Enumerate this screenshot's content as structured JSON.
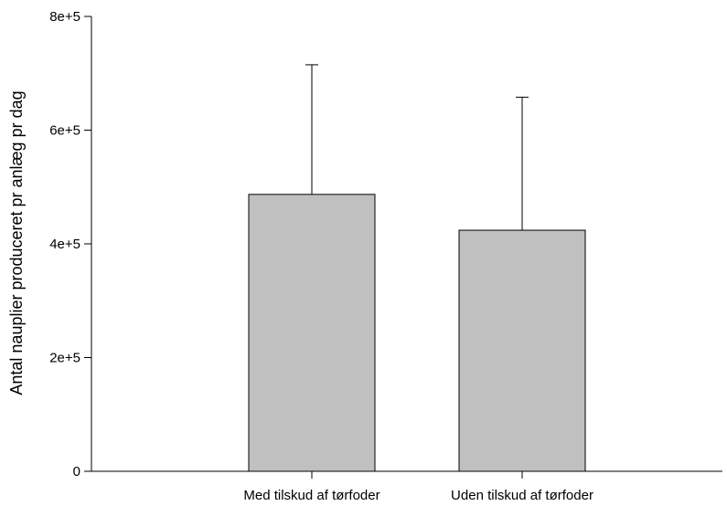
{
  "chart_data": {
    "type": "bar",
    "title": "",
    "xlabel": "",
    "ylabel": "Antal nauplier produceret pr anlæg pr dag",
    "categories": [
      "Med tilskud af tørfoder",
      "Uden tilskud af tørfoder"
    ],
    "values": [
      487000,
      424000
    ],
    "error_upper": [
      715000,
      658000
    ],
    "ylim": [
      0,
      800000
    ],
    "yticks": [
      0,
      200000,
      400000,
      600000,
      800000
    ],
    "ytick_labels": [
      "0",
      "2e+5",
      "4e+5",
      "6e+5",
      "8e+5"
    ],
    "grid": false,
    "legend": "none",
    "colors": {
      "bar_fill": "#c0c0c0",
      "bar_stroke": "#000000",
      "axis": "#000000"
    }
  }
}
